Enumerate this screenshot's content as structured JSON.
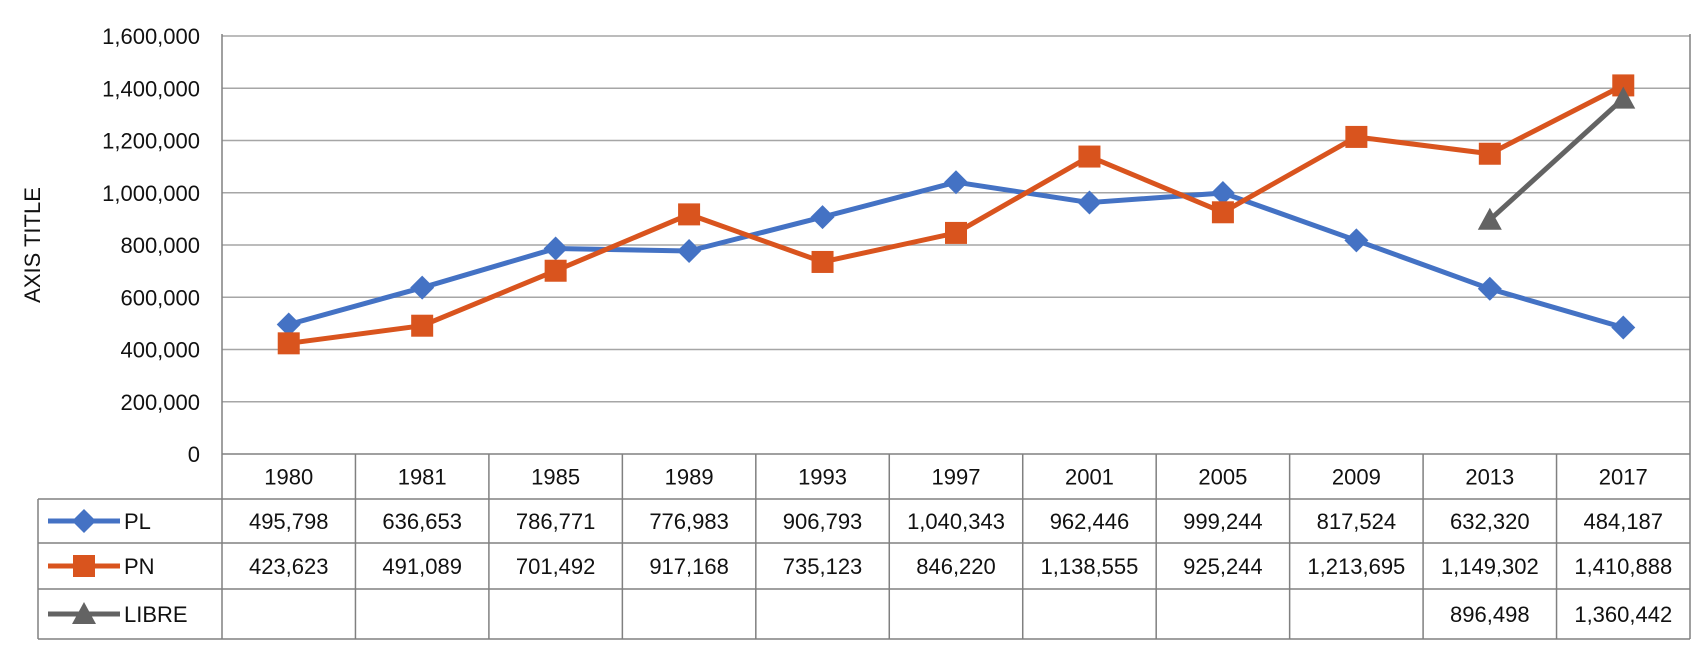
{
  "chart_data": {
    "type": "line",
    "ylabel": "AXIS TITLE",
    "ylim": [
      0,
      1600000
    ],
    "yticks": [
      "0",
      "200,000",
      "400,000",
      "600,000",
      "800,000",
      "1,000,000",
      "1,200,000",
      "1,400,000",
      "1,600,000"
    ],
    "grid": true,
    "legend": "data-table",
    "categories": [
      "1980",
      "1981",
      "1985",
      "1989",
      "1993",
      "1997",
      "2001",
      "2005",
      "2009",
      "2013",
      "2017"
    ],
    "series": [
      {
        "name": "PL",
        "color": "#4472C4",
        "marker": "diamond",
        "values": [
          495798,
          636653,
          786771,
          776983,
          906793,
          1040343,
          962446,
          999244,
          817524,
          632320,
          484187
        ],
        "labels": [
          "495,798",
          "636,653",
          "786,771",
          "776,983",
          "906,793",
          "1,040,343",
          "962,446",
          "999,244",
          "817,524",
          "632,320",
          "484,187"
        ]
      },
      {
        "name": "PN",
        "color": "#D9541E",
        "marker": "square",
        "values": [
          423623,
          491089,
          701492,
          917168,
          735123,
          846220,
          1138555,
          925244,
          1213695,
          1149302,
          1410888
        ],
        "labels": [
          "423,623",
          "491,089",
          "701,492",
          "917,168",
          "735,123",
          "846,220",
          "1,138,555",
          "925,244",
          "1,213,695",
          "1,149,302",
          "1,410,888"
        ]
      },
      {
        "name": "LIBRE",
        "color": "#636363",
        "marker": "triangle",
        "values": [
          null,
          null,
          null,
          null,
          null,
          null,
          null,
          null,
          null,
          896498,
          1360442
        ],
        "labels": [
          "",
          "",
          "",
          "",
          "",
          "",
          "",
          "",
          "",
          "896,498",
          "1,360,442"
        ]
      }
    ]
  }
}
